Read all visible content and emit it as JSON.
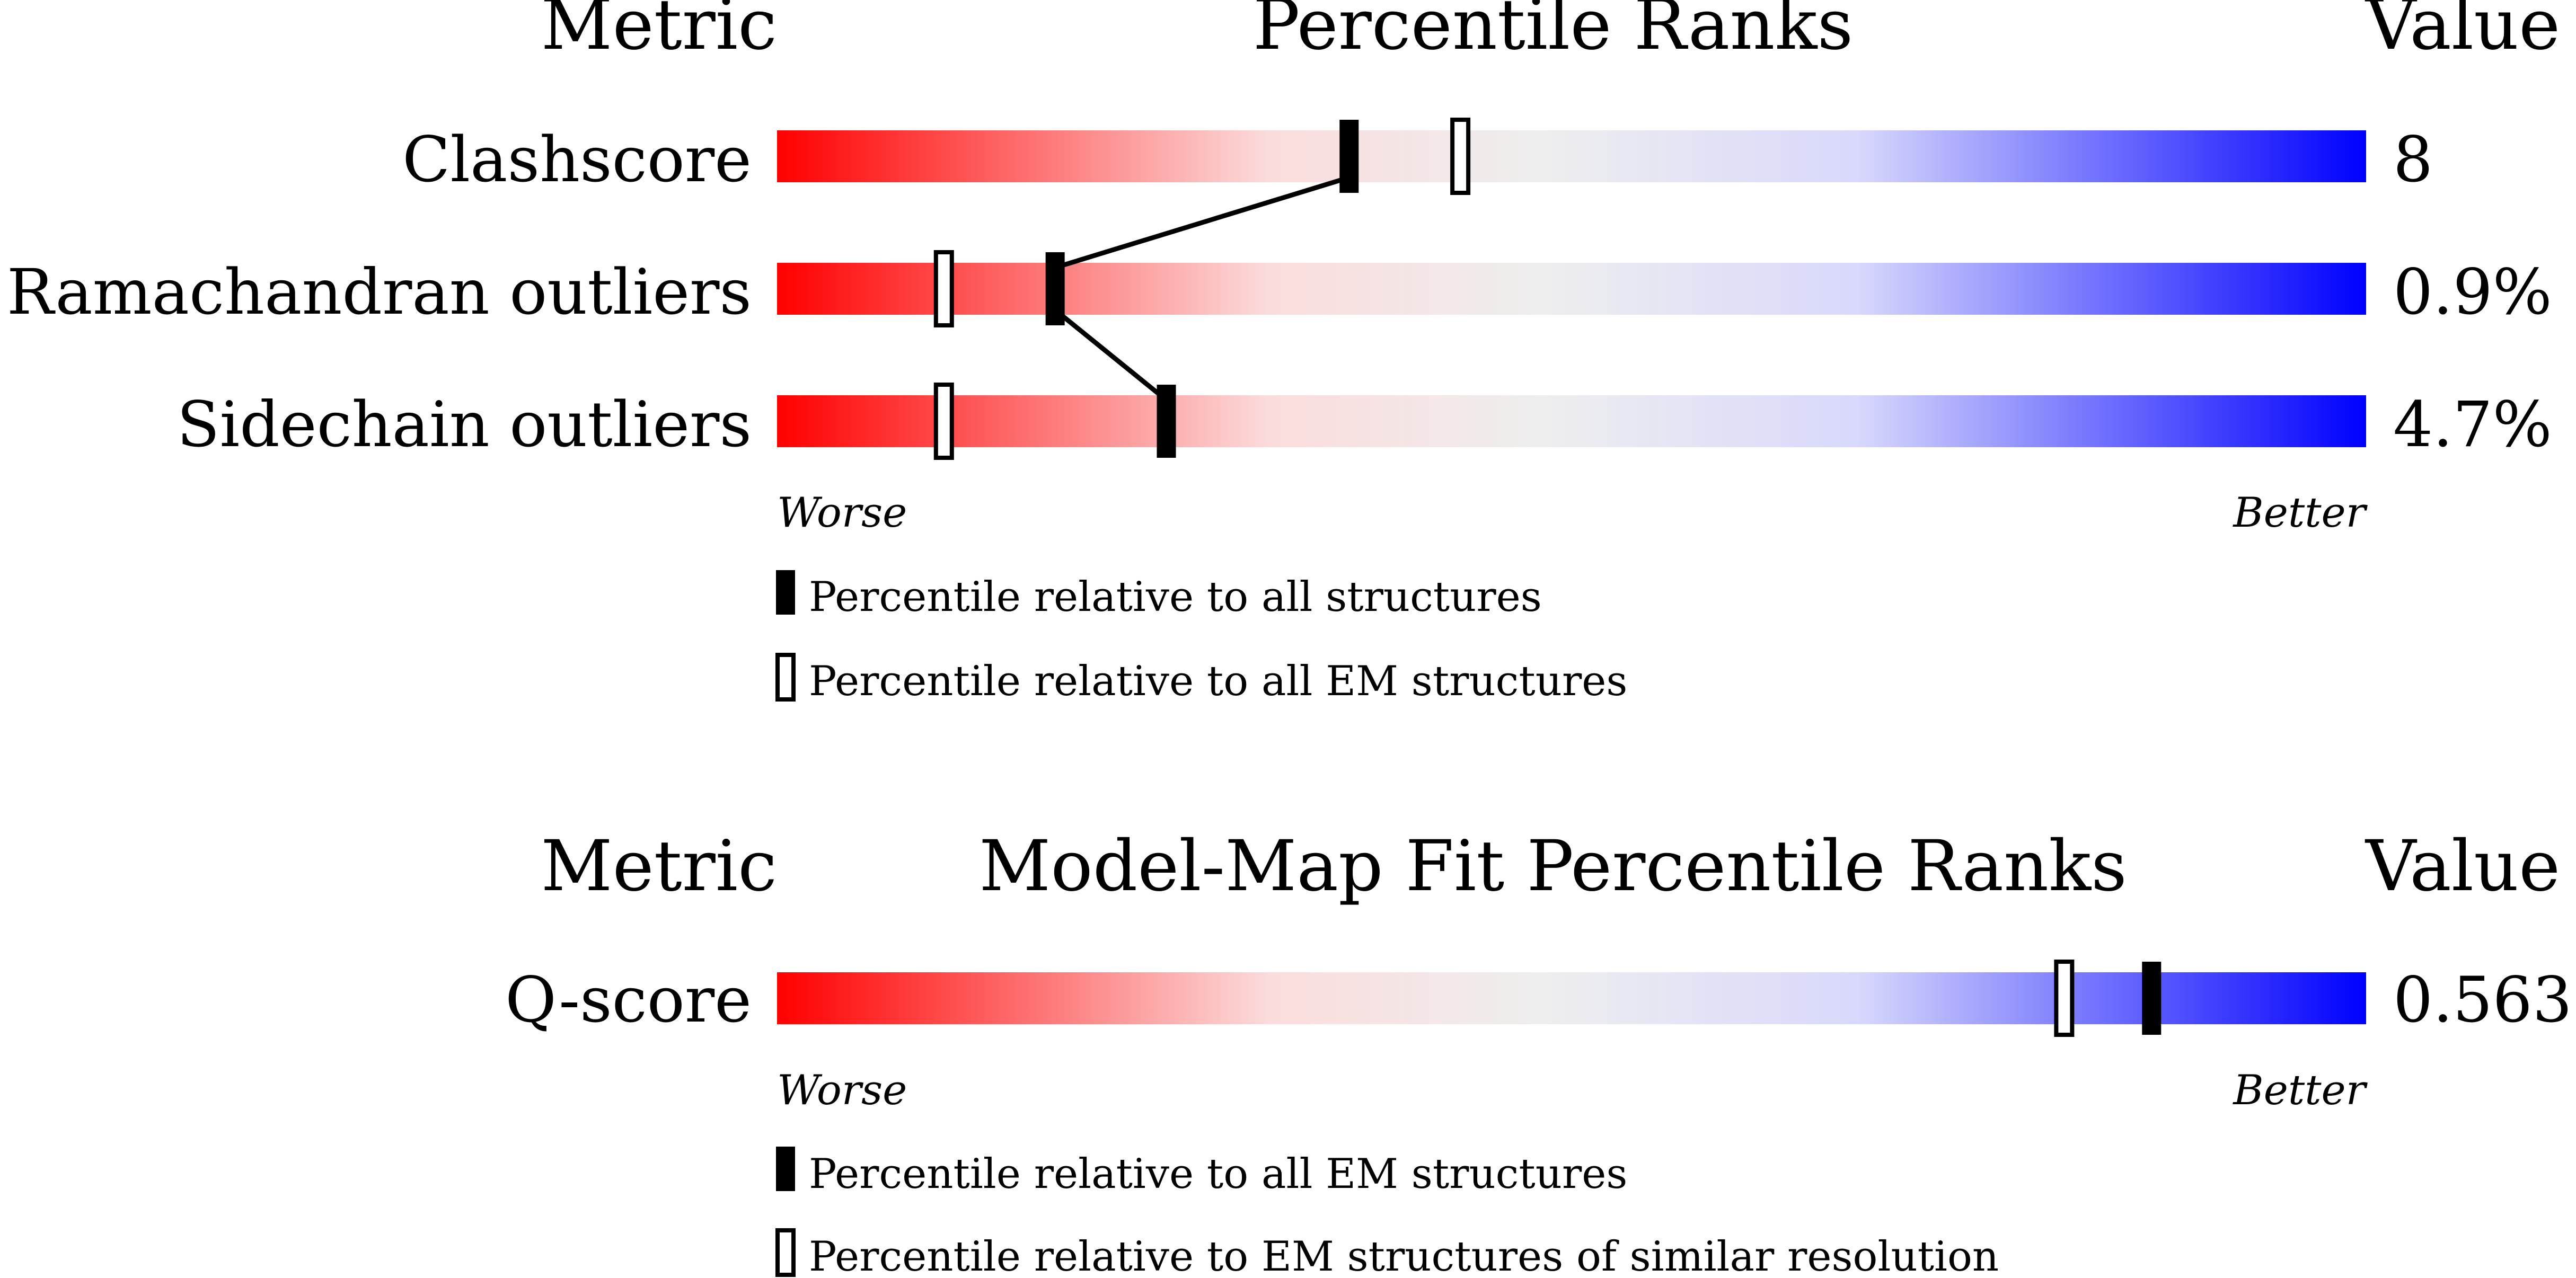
{
  "section1": {
    "header": {
      "metric": "Metric",
      "title": "Percentile Ranks",
      "value": "Value"
    },
    "rows": [
      {
        "name": "Clashscore",
        "value": "8",
        "percentile_all": 36,
        "percentile_em": 43
      },
      {
        "name": "Ramachandran outliers",
        "value": "0.9%",
        "percentile_all": 17.5,
        "percentile_em": 10.5
      },
      {
        "name": "Sidechain outliers",
        "value": "4.7%",
        "percentile_all": 24.5,
        "percentile_em": 10.5
      }
    ],
    "worse_label": "Worse",
    "better_label": "Better",
    "legend": [
      {
        "type": "filled",
        "text": "Percentile relative to all structures"
      },
      {
        "type": "open",
        "text": "Percentile relative to all EM structures"
      }
    ]
  },
  "section2": {
    "header": {
      "metric": "Metric",
      "title": "Model-Map Fit Percentile Ranks",
      "value": "Value"
    },
    "rows": [
      {
        "name": "Q-score",
        "value": "0.563",
        "percentile_all": 86.5,
        "percentile_em": 81
      }
    ],
    "worse_label": "Worse",
    "better_label": "Better",
    "legend": [
      {
        "type": "filled",
        "text": "Percentile relative to all EM structures"
      },
      {
        "type": "open",
        "text": "Percentile relative to EM structures of similar resolution"
      }
    ]
  },
  "colors": {
    "worse": "#ff0000",
    "light_red": "#fbdcdc",
    "neutral": "#eeeeee",
    "light_blue": "#d8d8fc",
    "better": "#0000ff",
    "marker": "#000000"
  }
}
